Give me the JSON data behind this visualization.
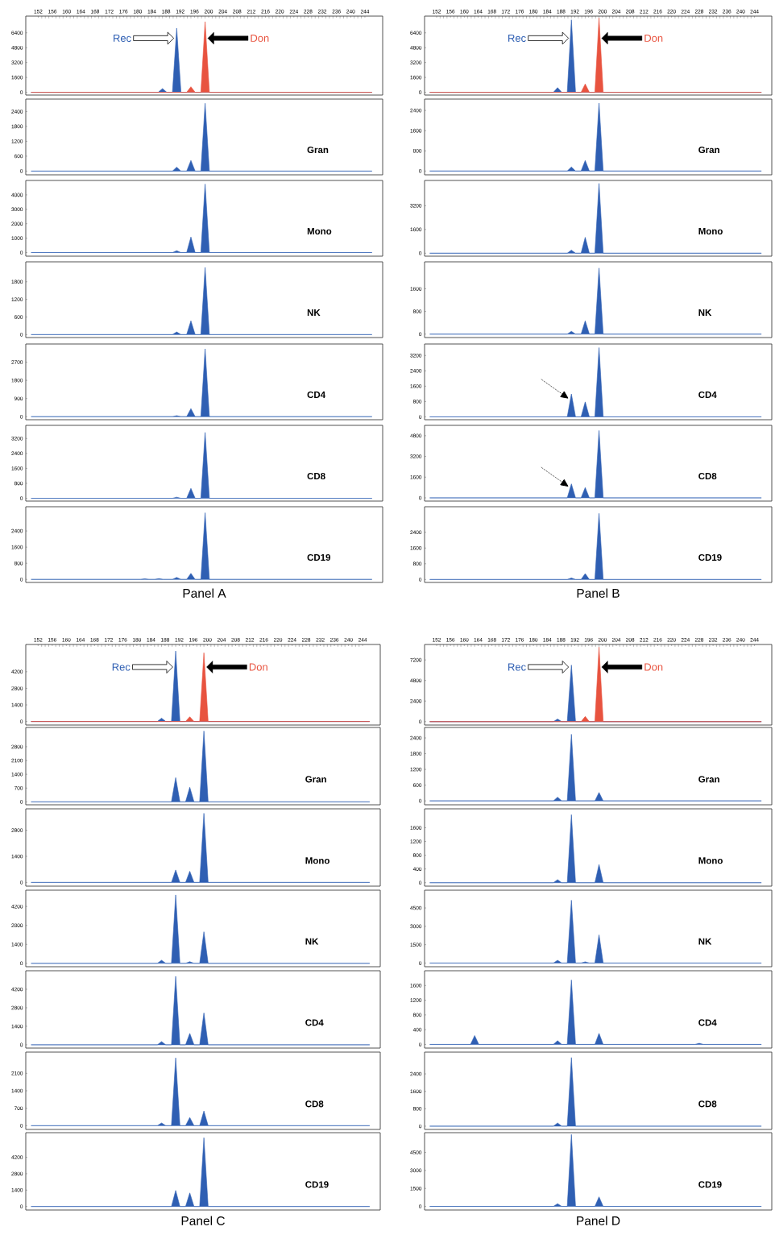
{
  "chart_data": [
    {
      "type": "area",
      "xlim": [
        148.5,
        249
      ],
      "xticks": [
        152,
        156,
        160,
        164,
        168,
        172,
        176,
        180,
        184,
        188,
        192,
        196,
        200,
        204,
        208,
        212,
        216,
        220,
        224,
        228,
        232,
        236,
        240,
        244
      ],
      "ylim": [
        -300,
        8200
      ],
      "yticks": [
        0,
        1600,
        3200,
        4800,
        6400
      ],
      "series": [
        {
          "name": "Rec",
          "color": "#2f5fb3",
          "x": [
            150,
            185.8,
            187,
            188.2,
            189.8,
            191,
            192.2,
            246
          ],
          "values": [
            0,
            0,
            400,
            0,
            0,
            6900,
            0,
            0
          ]
        },
        {
          "name": "Don",
          "color": "#e8533f",
          "x": [
            150,
            193.8,
            195,
            196.2,
            197.8,
            199,
            200.2,
            246
          ],
          "values": [
            0,
            0,
            600,
            0,
            0,
            7600,
            0,
            0
          ]
        }
      ]
    },
    {
      "type": "area",
      "xlim": [
        148.5,
        249
      ],
      "tick_labels": "y",
      "ylim": [
        -150,
        2900
      ],
      "yticks": [
        0,
        600,
        1200,
        1800,
        2400
      ],
      "annotations": [
        "Gran"
      ],
      "series": [
        {
          "color": "#2f5fb3",
          "x": [
            150,
            189.8,
            191,
            192.2,
            193.8,
            195,
            196.2,
            197.8,
            199,
            200.2,
            246
          ],
          "values": [
            0,
            0,
            160,
            0,
            0,
            430,
            0,
            0,
            2730,
            0,
            0
          ]
        }
      ]
    },
    {
      "type": "area",
      "xlim": [
        148.5,
        249
      ],
      "tick_labels": "y",
      "ylim": [
        -250,
        5000
      ],
      "yticks": [
        0,
        1000,
        2000,
        3000,
        4000
      ],
      "annotations": [
        "Mono"
      ],
      "series": [
        {
          "color": "#2f5fb3",
          "x": [
            150,
            189.8,
            191,
            192.2,
            193.8,
            195,
            196.2,
            197.8,
            199,
            200.2,
            246
          ],
          "values": [
            0,
            0,
            130,
            0,
            0,
            1080,
            0,
            0,
            4750,
            0,
            0
          ]
        }
      ]
    },
    {
      "type": "area",
      "xlim": [
        148.5,
        249
      ],
      "tick_labels": "y",
      "ylim": [
        -100,
        2480
      ],
      "yticks": [
        0,
        600,
        1200,
        1800
      ],
      "annotations": [
        "NK"
      ],
      "series": [
        {
          "color": "#2f5fb3",
          "x": [
            150,
            189.8,
            191,
            192.2,
            193.8,
            195,
            196.2,
            197.8,
            199,
            200.2,
            246
          ],
          "values": [
            0,
            0,
            90,
            0,
            0,
            470,
            0,
            0,
            2290,
            0,
            0
          ]
        }
      ]
    },
    {
      "type": "area",
      "xlim": [
        148.5,
        249
      ],
      "tick_labels": "y",
      "ylim": [
        -150,
        3600
      ],
      "yticks": [
        0,
        900,
        1800,
        2700
      ],
      "annotations": [
        "CD4"
      ],
      "series": [
        {
          "color": "#2f5fb3",
          "x": [
            150,
            189.8,
            191,
            192.2,
            193.8,
            195,
            196.2,
            197.8,
            199,
            200.2,
            246
          ],
          "values": [
            0,
            0,
            50,
            0,
            0,
            400,
            0,
            0,
            3360,
            0,
            0
          ]
        }
      ]
    },
    {
      "type": "area",
      "xlim": [
        148.5,
        249
      ],
      "tick_labels": "y",
      "ylim": [
        -150,
        3900
      ],
      "yticks": [
        0,
        800,
        1600,
        2400,
        3200
      ],
      "annotations": [
        "CD8"
      ],
      "series": [
        {
          "color": "#2f5fb3",
          "x": [
            150,
            189.8,
            191,
            192.2,
            193.8,
            195,
            196.2,
            197.8,
            199,
            200.2,
            246
          ],
          "values": [
            0,
            0,
            60,
            0,
            0,
            530,
            0,
            0,
            3520,
            0,
            0
          ]
        }
      ]
    },
    {
      "type": "area",
      "xlim": [
        148.5,
        249
      ],
      "tick_labels": "y",
      "ylim": [
        -150,
        3600
      ],
      "yticks": [
        0,
        800,
        1600,
        2400
      ],
      "annotations": [
        "CD19"
      ],
      "xlabel": "Panel A",
      "series": [
        {
          "color": "#2f5fb3",
          "x": [
            150,
            180.8,
            182,
            183.2,
            184.8,
            186,
            187.2,
            189.8,
            191,
            192.2,
            193.8,
            195,
            196.2,
            197.8,
            199,
            200.2,
            246
          ],
          "values": [
            0,
            0,
            30,
            0,
            0,
            40,
            0,
            0,
            100,
            0,
            0,
            300,
            0,
            0,
            3300,
            0,
            0
          ]
        }
      ]
    },
    {
      "type": "area",
      "xlim": [
        148.5,
        249
      ],
      "xticks": [
        152,
        156,
        160,
        164,
        168,
        172,
        176,
        180,
        184,
        188,
        192,
        196,
        200,
        204,
        208,
        212,
        216,
        220,
        224,
        228,
        232,
        236,
        240,
        244
      ],
      "ylim": [
        -300,
        8200
      ],
      "yticks": [
        0,
        1600,
        3200,
        4800,
        6400
      ],
      "series": [
        {
          "name": "Rec",
          "color": "#2f5fb3",
          "x": [
            150,
            185.8,
            187,
            188.2,
            189.8,
            191,
            192.2,
            246
          ],
          "values": [
            0,
            0,
            500,
            0,
            0,
            7800,
            0,
            0
          ]
        },
        {
          "name": "Don",
          "color": "#e8533f",
          "x": [
            150,
            193.8,
            195,
            196.2,
            197.8,
            199,
            200.2,
            246
          ],
          "values": [
            0,
            0,
            900,
            0,
            0,
            8000,
            0,
            0
          ]
        }
      ]
    },
    {
      "type": "area",
      "xlim": [
        148.5,
        249
      ],
      "tick_labels": "y",
      "ylim": [
        -150,
        2850
      ],
      "yticks": [
        0,
        800,
        1600,
        2400
      ],
      "annotations": [
        "Gran"
      ],
      "series": [
        {
          "color": "#2f5fb3",
          "x": [
            150,
            189.8,
            191,
            192.2,
            193.8,
            195,
            196.2,
            197.8,
            199,
            200.2,
            246
          ],
          "values": [
            0,
            0,
            160,
            0,
            0,
            420,
            0,
            0,
            2690,
            0,
            0
          ]
        }
      ]
    },
    {
      "type": "area",
      "xlim": [
        148.5,
        249
      ],
      "tick_labels": "y",
      "ylim": [
        -200,
        4900
      ],
      "yticks": [
        0,
        1600,
        3200
      ],
      "annotations": [
        "Mono"
      ],
      "series": [
        {
          "color": "#2f5fb3",
          "x": [
            150,
            189.8,
            191,
            192.2,
            193.8,
            195,
            196.2,
            197.8,
            199,
            200.2,
            246
          ],
          "values": [
            0,
            0,
            210,
            0,
            0,
            1070,
            0,
            0,
            4700,
            0,
            0
          ]
        }
      ]
    },
    {
      "type": "area",
      "xlim": [
        148.5,
        249
      ],
      "tick_labels": "y",
      "ylim": [
        -120,
        2550
      ],
      "yticks": [
        0,
        800,
        1600
      ],
      "annotations": [
        "NK"
      ],
      "series": [
        {
          "color": "#2f5fb3",
          "x": [
            150,
            189.8,
            191,
            192.2,
            193.8,
            195,
            196.2,
            197.8,
            199,
            200.2,
            246
          ],
          "values": [
            0,
            0,
            100,
            0,
            0,
            470,
            0,
            0,
            2330,
            0,
            0
          ]
        }
      ]
    },
    {
      "type": "area",
      "xlim": [
        148.5,
        249
      ],
      "tick_labels": "y",
      "ylim": [
        -150,
        3800
      ],
      "yticks": [
        0,
        800,
        1600,
        2400,
        3200
      ],
      "annotations": [
        "CD4"
      ],
      "series": [
        {
          "color": "#2f5fb3",
          "x": [
            150,
            189.8,
            191,
            192.2,
            193.8,
            195,
            196.2,
            197.8,
            199,
            200.2,
            246
          ],
          "values": [
            0,
            0,
            1190,
            0,
            0,
            780,
            0,
            0,
            3610,
            0,
            0
          ]
        }
      ]
    },
    {
      "type": "area",
      "xlim": [
        148.5,
        249
      ],
      "tick_labels": "y",
      "ylim": [
        -250,
        5600
      ],
      "yticks": [
        0,
        1600,
        3200,
        4800
      ],
      "annotations": [
        "CD8"
      ],
      "series": [
        {
          "color": "#2f5fb3",
          "x": [
            150,
            189.8,
            191,
            192.2,
            193.8,
            195,
            196.2,
            197.8,
            199,
            200.2,
            246
          ],
          "values": [
            0,
            0,
            1080,
            0,
            0,
            800,
            0,
            0,
            5200,
            0,
            0
          ]
        }
      ]
    },
    {
      "type": "area",
      "xlim": [
        148.5,
        249
      ],
      "tick_labels": "y",
      "ylim": [
        -150,
        3700
      ],
      "yticks": [
        0,
        800,
        1600,
        2400
      ],
      "annotations": [
        "CD19"
      ],
      "xlabel": "Panel B",
      "series": [
        {
          "color": "#2f5fb3",
          "x": [
            150,
            189.8,
            191,
            192.2,
            193.8,
            195,
            196.2,
            197.8,
            199,
            200.2,
            246
          ],
          "values": [
            0,
            0,
            80,
            0,
            0,
            300,
            0,
            0,
            3360,
            0,
            0
          ]
        }
      ]
    },
    {
      "type": "area",
      "xlim": [
        148.5,
        249
      ],
      "xticks": [
        152,
        156,
        160,
        164,
        168,
        172,
        176,
        180,
        184,
        188,
        192,
        196,
        200,
        204,
        208,
        212,
        216,
        220,
        224,
        228,
        232,
        236,
        240,
        244
      ],
      "ylim": [
        -300,
        6500
      ],
      "yticks": [
        0,
        1400,
        2800,
        4200
      ],
      "series": [
        {
          "name": "Rec",
          "color": "#2f5fb3",
          "x": [
            150,
            185.8,
            187,
            188.2,
            189.8,
            191,
            192.2,
            246
          ],
          "values": [
            0,
            0,
            280,
            0,
            0,
            5950,
            0,
            0
          ]
        },
        {
          "name": "Don",
          "color": "#e8533f",
          "x": [
            150,
            193.8,
            195,
            196.2,
            197.8,
            199,
            200.2,
            246
          ],
          "values": [
            0,
            0,
            400,
            0,
            0,
            5800,
            0,
            0
          ]
        }
      ]
    },
    {
      "type": "area",
      "xlim": [
        148.5,
        249
      ],
      "tick_labels": "y",
      "ylim": [
        -150,
        3780
      ],
      "yticks": [
        0,
        700,
        1400,
        2100,
        2800
      ],
      "annotations": [
        "Gran"
      ],
      "series": [
        {
          "color": "#2f5fb3",
          "x": [
            150,
            189.8,
            191,
            192.2,
            193.8,
            195,
            196.2,
            197.8,
            199,
            200.2,
            246
          ],
          "values": [
            0,
            0,
            1230,
            0,
            0,
            740,
            0,
            0,
            3600,
            0,
            0
          ]
        }
      ]
    },
    {
      "type": "area",
      "xlim": [
        148.5,
        249
      ],
      "tick_labels": "y",
      "ylim": [
        -200,
        3950
      ],
      "yticks": [
        0,
        1400,
        2800
      ],
      "annotations": [
        "Mono"
      ],
      "series": [
        {
          "color": "#2f5fb3",
          "x": [
            150,
            189.8,
            191,
            192.2,
            193.8,
            195,
            196.2,
            197.8,
            199,
            200.2,
            246
          ],
          "values": [
            0,
            0,
            670,
            0,
            0,
            600,
            0,
            0,
            3710,
            0,
            0
          ]
        }
      ]
    },
    {
      "type": "area",
      "xlim": [
        148.5,
        249
      ],
      "tick_labels": "y",
      "ylim": [
        -250,
        5400
      ],
      "yticks": [
        0,
        1400,
        2800,
        4200
      ],
      "annotations": [
        "NK"
      ],
      "series": [
        {
          "color": "#2f5fb3",
          "x": [
            150,
            185.8,
            187,
            188.2,
            189.8,
            191,
            192.2,
            193.8,
            195,
            196.2,
            197.8,
            199,
            200.2,
            246
          ],
          "values": [
            0,
            0,
            230,
            0,
            0,
            5050,
            0,
            0,
            120,
            0,
            0,
            2330,
            0,
            0
          ]
        }
      ]
    },
    {
      "type": "area",
      "xlim": [
        148.5,
        249
      ],
      "tick_labels": "y",
      "ylim": [
        -250,
        5600
      ],
      "yticks": [
        0,
        1400,
        2800,
        4200
      ],
      "annotations": [
        "CD4"
      ],
      "series": [
        {
          "color": "#2f5fb3",
          "x": [
            150,
            185.8,
            187,
            188.2,
            189.8,
            191,
            192.2,
            193.8,
            195,
            196.2,
            197.8,
            199,
            200.2,
            246
          ],
          "values": [
            0,
            0,
            240,
            0,
            0,
            5180,
            0,
            0,
            860,
            0,
            0,
            2410,
            0,
            0
          ]
        }
      ]
    },
    {
      "type": "area",
      "xlim": [
        148.5,
        249
      ],
      "tick_labels": "y",
      "ylim": [
        -150,
        2950
      ],
      "yticks": [
        0,
        700,
        1400,
        2100
      ],
      "annotations": [
        "CD8"
      ],
      "series": [
        {
          "color": "#2f5fb3",
          "x": [
            150,
            185.8,
            187,
            188.2,
            189.8,
            191,
            192.2,
            193.8,
            195,
            196.2,
            197.8,
            199,
            200.2,
            246
          ],
          "values": [
            0,
            0,
            110,
            0,
            0,
            2720,
            0,
            0,
            330,
            0,
            0,
            590,
            0,
            0
          ]
        }
      ]
    },
    {
      "type": "area",
      "xlim": [
        148.5,
        249
      ],
      "tick_labels": "y",
      "ylim": [
        -300,
        6300
      ],
      "yticks": [
        0,
        1400,
        2800,
        4200
      ],
      "annotations": [
        "CD19"
      ],
      "xlabel": "Panel C",
      "series": [
        {
          "color": "#2f5fb3",
          "x": [
            150,
            189.8,
            191,
            192.2,
            193.8,
            195,
            196.2,
            197.8,
            199,
            200.2,
            246
          ],
          "values": [
            0,
            0,
            1370,
            0,
            0,
            1160,
            0,
            0,
            5870,
            0,
            0
          ]
        }
      ]
    },
    {
      "type": "area",
      "xlim": [
        148.5,
        249
      ],
      "xticks": [
        152,
        156,
        160,
        164,
        168,
        172,
        176,
        180,
        184,
        188,
        192,
        196,
        200,
        204,
        208,
        212,
        216,
        220,
        224,
        228,
        232,
        236,
        240,
        244
      ],
      "ylim": [
        -400,
        9000
      ],
      "yticks": [
        0,
        2400,
        4800,
        7200
      ],
      "series": [
        {
          "name": "Rec",
          "color": "#2f5fb3",
          "x": [
            150,
            185.8,
            187,
            188.2,
            189.8,
            191,
            192.2,
            246
          ],
          "values": [
            0,
            0,
            300,
            0,
            0,
            6600,
            0,
            0
          ]
        },
        {
          "name": "Don",
          "color": "#e8533f",
          "x": [
            150,
            193.8,
            195,
            196.2,
            197.8,
            199,
            200.2,
            246
          ],
          "values": [
            0,
            0,
            600,
            0,
            0,
            8700,
            0,
            0
          ]
        }
      ]
    },
    {
      "type": "area",
      "xlim": [
        148.5,
        249
      ],
      "tick_labels": "y",
      "ylim": [
        -150,
        2800
      ],
      "yticks": [
        0,
        600,
        1200,
        1800,
        2400
      ],
      "annotations": [
        "Gran"
      ],
      "series": [
        {
          "color": "#2f5fb3",
          "x": [
            150,
            185.8,
            187,
            188.2,
            189.8,
            191,
            192.2,
            197.8,
            199,
            200.2,
            246
          ],
          "values": [
            0,
            0,
            140,
            0,
            0,
            2540,
            0,
            0,
            320,
            0,
            0
          ]
        }
      ]
    },
    {
      "type": "area",
      "xlim": [
        148.5,
        249
      ],
      "tick_labels": "y",
      "ylim": [
        -100,
        2150
      ],
      "yticks": [
        0,
        400,
        800,
        1200,
        1600
      ],
      "annotations": [
        "Mono"
      ],
      "series": [
        {
          "color": "#2f5fb3",
          "x": [
            150,
            185.8,
            187,
            188.2,
            189.8,
            191,
            192.2,
            197.8,
            199,
            200.2,
            246
          ],
          "values": [
            0,
            0,
            90,
            0,
            0,
            1980,
            0,
            0,
            530,
            0,
            0
          ]
        }
      ]
    },
    {
      "type": "area",
      "xlim": [
        148.5,
        249
      ],
      "tick_labels": "y",
      "ylim": [
        -300,
        5950
      ],
      "yticks": [
        0,
        1500,
        3000,
        4500
      ],
      "annotations": [
        "NK"
      ],
      "series": [
        {
          "color": "#2f5fb3",
          "x": [
            150,
            185.8,
            187,
            188.2,
            189.8,
            191,
            192.2,
            193.8,
            195,
            196.2,
            197.8,
            199,
            200.2,
            246
          ],
          "values": [
            0,
            0,
            230,
            0,
            0,
            5130,
            0,
            0,
            100,
            0,
            0,
            2300,
            0,
            0
          ]
        }
      ]
    },
    {
      "type": "area",
      "xlim": [
        148.5,
        249
      ],
      "tick_labels": "y",
      "ylim": [
        -100,
        2000
      ],
      "yticks": [
        0,
        400,
        800,
        1200,
        1600
      ],
      "annotations": [
        "CD4"
      ],
      "series": [
        {
          "color": "#2f5fb3",
          "x": [
            150,
            161.8,
            163,
            164.2,
            185.8,
            187,
            188.2,
            189.8,
            191,
            192.2,
            197.8,
            199,
            200.2,
            226.8,
            228,
            229.2,
            246
          ],
          "values": [
            0,
            0,
            240,
            0,
            0,
            100,
            0,
            0,
            1750,
            0,
            0,
            300,
            0,
            0,
            30,
            0,
            0
          ]
        }
      ]
    },
    {
      "type": "area",
      "xlim": [
        148.5,
        249
      ],
      "tick_labels": "y",
      "ylim": [
        -150,
        3400
      ],
      "yticks": [
        0,
        800,
        1600,
        2400
      ],
      "annotations": [
        "CD8"
      ],
      "series": [
        {
          "color": "#2f5fb3",
          "x": [
            150,
            185.8,
            187,
            188.2,
            189.8,
            191,
            192.2,
            246
          ],
          "values": [
            0,
            0,
            150,
            0,
            0,
            3150,
            0,
            0
          ]
        }
      ]
    },
    {
      "type": "area",
      "xlim": [
        148.5,
        249
      ],
      "tick_labels": "y",
      "ylim": [
        -300,
        6150
      ],
      "yticks": [
        0,
        1500,
        3000,
        4500
      ],
      "annotations": [
        "CD19"
      ],
      "xlabel": "Panel D",
      "series": [
        {
          "color": "#2f5fb3",
          "x": [
            150,
            185.8,
            187,
            188.2,
            189.8,
            191,
            192.2,
            197.8,
            199,
            200.2,
            246
          ],
          "values": [
            0,
            0,
            230,
            0,
            0,
            6000,
            0,
            0,
            800,
            0,
            0
          ]
        }
      ]
    }
  ]
}
